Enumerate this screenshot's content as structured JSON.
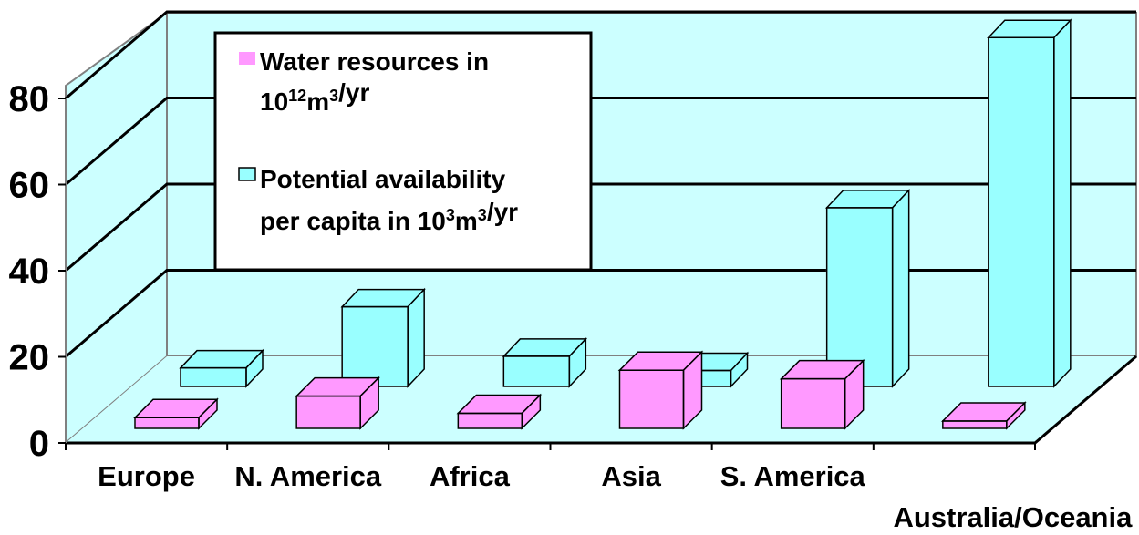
{
  "chart_data": {
    "type": "bar",
    "style": "3d-clustered-column",
    "categories": [
      "Europe",
      "N. America",
      "Africa",
      "Asia",
      "S. America",
      "Australia/Oceania"
    ],
    "series": [
      {
        "name": "Water resources in 10^12m^3/yr",
        "name_parts": {
          "prefix": "Water resources in",
          "base": "10",
          "exp": "12",
          "unit": "m",
          "unit_exp": "3",
          "suffix": "/yr"
        },
        "values": [
          2.5,
          7.5,
          3.5,
          13.5,
          11.5,
          1.7
        ],
        "color": "#ff99ff"
      },
      {
        "name": "Potential availability per capita in 10^3m^3/yr",
        "name_parts": {
          "line1": "Potential availability",
          "line2_prefix": "per capita in 10",
          "exp": "3",
          "unit": "m",
          "unit_exp": "3",
          "suffix": "/yr"
        },
        "values": [
          4.3,
          18.5,
          7.0,
          3.7,
          41.5,
          81.0
        ],
        "color": "#99ffff"
      }
    ],
    "y_ticks": [
      "0",
      "20",
      "40",
      "60",
      "80"
    ],
    "ylim": [
      0,
      90
    ],
    "grid": true,
    "legend": "top-left"
  }
}
